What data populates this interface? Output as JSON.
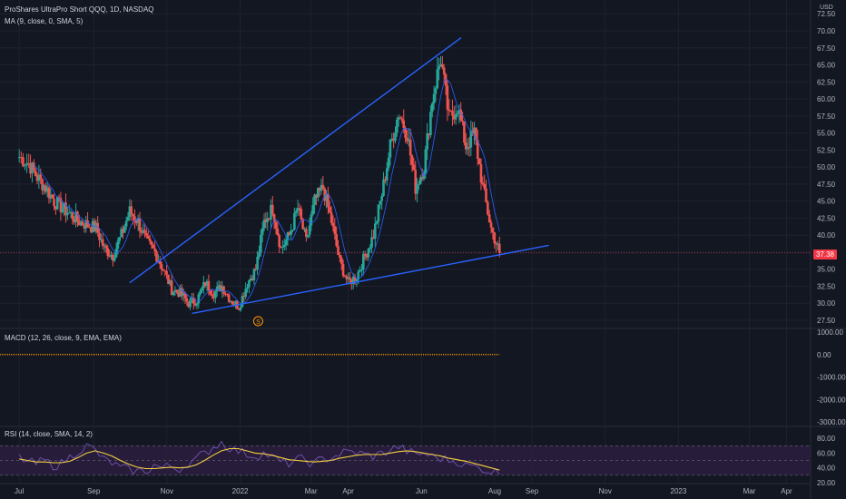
{
  "header": {
    "title": "ProShares UltraPro Short QQQ, 1D, NASDAQ",
    "ma_label": "MA (9, close, 0, SMA, 5)",
    "macd_label": "MACD (12, 26, close, 9, EMA, EMA)",
    "rsi_label": "RSI (14, close, SMA, 14, 2)",
    "currency": "USD",
    "last_price": "37.38",
    "dividend_marker": "S"
  },
  "colors": {
    "background": "#131722",
    "grid": "#1e222d",
    "candle_up": "#26a69a",
    "candle_down": "#ef5350",
    "ma_line": "#2962ff",
    "trendline": "#2962ff",
    "last_price": "#f23645",
    "macd_line": "#ff9800",
    "rsi_line": "#7e57c2",
    "rsi_ma": "#f4d03f",
    "rsi_band": "#2a1e3d"
  },
  "chart_data": [
    {
      "type": "candlestick",
      "title": "ProShares UltraPro Short QQQ, 1D, NASDAQ",
      "y_axis_labels": [
        "72.50",
        "70.00",
        "67.50",
        "65.00",
        "62.50",
        "60.00",
        "57.50",
        "55.00",
        "52.50",
        "50.00",
        "47.50",
        "45.00",
        "42.50",
        "40.00",
        "37.50",
        "35.00",
        "32.50",
        "30.00",
        "27.50"
      ],
      "ylim": [
        26,
        73
      ],
      "x_axis_labels": [
        "Jul",
        "Sep",
        "Nov",
        "2022",
        "Mar",
        "Apr",
        "Jun",
        "Aug",
        "Sep",
        "Nov",
        "2023",
        "Mar",
        "Apr"
      ],
      "last_price": 37.38,
      "series": [
        {
          "name": "SQQQ",
          "close_path": [
            [
              "2021-07-01",
              51.5
            ],
            [
              "2021-07-09",
              50.5
            ],
            [
              "2021-07-16",
              48.5
            ],
            [
              "2021-07-23",
              47
            ],
            [
              "2021-07-30",
              45
            ],
            [
              "2021-08-06",
              44
            ],
            [
              "2021-08-13",
              43
            ],
            [
              "2021-08-20",
              42
            ],
            [
              "2021-08-27",
              41.5
            ],
            [
              "2021-09-03",
              41
            ],
            [
              "2021-09-10",
              38
            ],
            [
              "2021-09-17",
              37
            ],
            [
              "2021-09-24",
              40
            ],
            [
              "2021-10-01",
              43.5
            ],
            [
              "2021-10-08",
              42
            ],
            [
              "2021-10-15",
              39
            ],
            [
              "2021-10-22",
              37.5
            ],
            [
              "2021-10-29",
              35
            ],
            [
              "2021-11-05",
              32
            ],
            [
              "2021-11-12",
              31.5
            ],
            [
              "2021-11-19",
              30
            ],
            [
              "2021-11-26",
              30.5
            ],
            [
              "2021-12-03",
              33
            ],
            [
              "2021-12-10",
              31.5
            ],
            [
              "2021-12-17",
              32.5
            ],
            [
              "2021-12-24",
              30.5
            ],
            [
              "2021-12-31",
              29.5
            ],
            [
              "2022-01-07",
              33
            ],
            [
              "2022-01-14",
              35
            ],
            [
              "2022-01-21",
              42
            ],
            [
              "2022-01-28",
              44
            ],
            [
              "2022-02-04",
              38
            ],
            [
              "2022-02-11",
              40
            ],
            [
              "2022-02-18",
              44
            ],
            [
              "2022-02-25",
              39
            ],
            [
              "2022-03-04",
              45
            ],
            [
              "2022-03-11",
              47
            ],
            [
              "2022-03-18",
              42
            ],
            [
              "2022-03-25",
              36
            ],
            [
              "2022-04-01",
              33
            ],
            [
              "2022-04-08",
              34
            ],
            [
              "2022-04-15",
              37
            ],
            [
              "2022-04-22",
              40
            ],
            [
              "2022-04-29",
              46
            ],
            [
              "2022-05-06",
              53
            ],
            [
              "2022-05-13",
              58
            ],
            [
              "2022-05-20",
              55
            ],
            [
              "2022-05-27",
              47
            ],
            [
              "2022-06-03",
              50
            ],
            [
              "2022-06-10",
              60
            ],
            [
              "2022-06-17",
              66
            ],
            [
              "2022-06-24",
              57
            ],
            [
              "2022-07-01",
              59
            ],
            [
              "2022-07-08",
              53
            ],
            [
              "2022-07-15",
              55
            ],
            [
              "2022-07-22",
              47
            ],
            [
              "2022-07-29",
              41
            ],
            [
              "2022-08-05",
              37.38
            ]
          ]
        }
      ],
      "ma": {
        "name": "MA (9, close, 0, SMA, 5)"
      },
      "trendlines": [
        {
          "from": [
            "2021-10-01",
            33
          ],
          "to": [
            "2022-07-04",
            69
          ]
        },
        {
          "from": [
            "2021-11-22",
            28.5
          ],
          "to": [
            "2022-09-15",
            38.5
          ]
        }
      ]
    },
    {
      "type": "line",
      "title": "MACD (12, 26, close, 9, EMA, EMA)",
      "y_axis_labels": [
        "1000.00",
        "0.00",
        "-1000.00",
        "-2000.00",
        "-3000.00"
      ],
      "ylim": [
        -3000,
        1000
      ],
      "series": [
        {
          "name": "MACD",
          "values": [
            0,
            0,
            0,
            0,
            0,
            0,
            0,
            0
          ]
        }
      ]
    },
    {
      "type": "line",
      "title": "RSI (14, close, SMA, 14, 2)",
      "y_axis_labels": [
        "80.00",
        "60.00",
        "40.00",
        "20.00"
      ],
      "ylim": [
        20,
        85
      ],
      "band": [
        30,
        70
      ],
      "series": [
        {
          "name": "RSI",
          "values": [
            55,
            48,
            45,
            50,
            42,
            47,
            55,
            62,
            70,
            64,
            52,
            46,
            40,
            38,
            36,
            35,
            44,
            40,
            42,
            38,
            45,
            52,
            60,
            68,
            75,
            66,
            62,
            58,
            56,
            60,
            55,
            48,
            45,
            52,
            50,
            46,
            52,
            54,
            58,
            62,
            60,
            58,
            55,
            60,
            64,
            68,
            62,
            58,
            60,
            56,
            52,
            50,
            48,
            44,
            42,
            38,
            35,
            33
          ]
        },
        {
          "name": "RSI MA",
          "values": [
            52,
            50,
            48,
            48,
            47,
            47,
            49,
            54,
            60,
            63,
            60,
            56,
            50,
            45,
            41,
            39,
            39,
            40,
            41,
            40,
            41,
            44,
            50,
            57,
            63,
            66,
            66,
            63,
            60,
            59,
            57,
            54,
            51,
            50,
            49,
            48,
            49,
            50,
            53,
            55,
            57,
            58,
            58,
            58,
            60,
            62,
            63,
            62,
            60,
            58,
            56,
            53,
            51,
            49,
            46,
            43,
            40,
            37
          ]
        }
      ]
    }
  ]
}
